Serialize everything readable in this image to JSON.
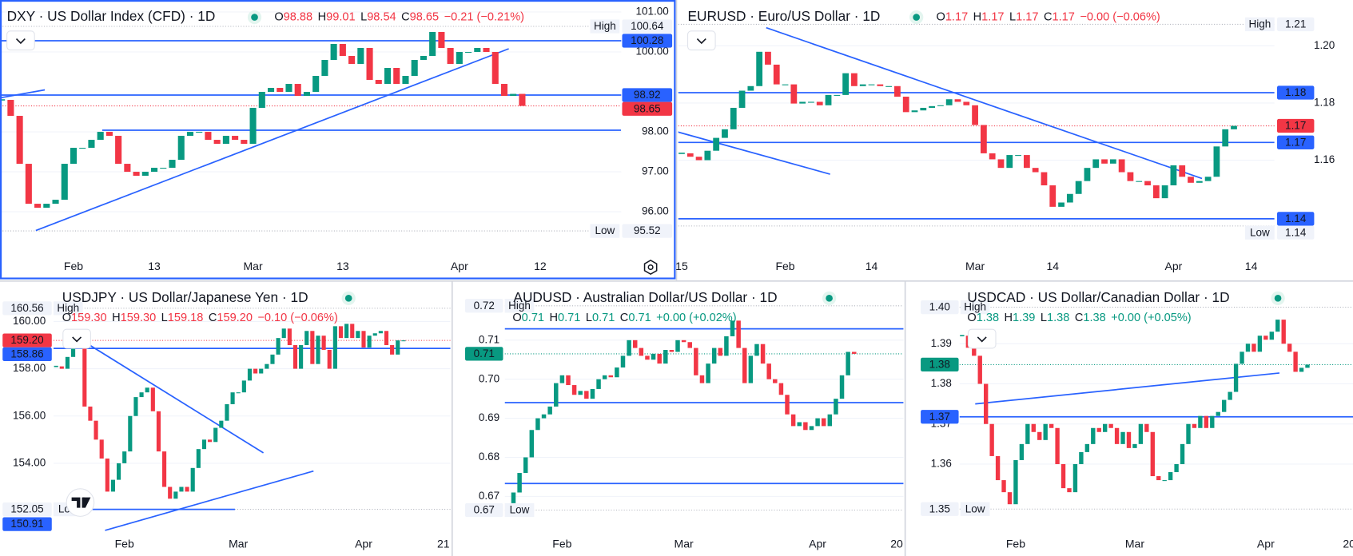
{
  "chart_data": [
    {
      "type": "candlestick",
      "title": "DXY · US Dollar Index (CFD) · 1D",
      "quote": [
        {
          "key": "O",
          "value": "98.88"
        },
        {
          "key": "H",
          "value": "99.01"
        },
        {
          "key": "L",
          "value": "98.54"
        },
        {
          "key": "C",
          "value": "98.65"
        }
      ],
      "change": "−0.21 (−0.21%)",
      "quote_color": "#f23645",
      "up_color": "#089981",
      "down_color": "#f23645",
      "categories": [
        null,
        null,
        null,
        null,
        null,
        null,
        null,
        null,
        "Feb",
        null,
        null,
        null,
        null,
        null,
        null,
        null,
        null,
        "13",
        null,
        null,
        null,
        null,
        null,
        null,
        null,
        null,
        null,
        null,
        "Mar",
        null,
        null,
        null,
        null,
        null,
        null,
        null,
        null,
        null,
        "13",
        null,
        null,
        null,
        null,
        null,
        null,
        null,
        null,
        null,
        null,
        null,
        null,
        "Apr",
        null,
        null,
        null,
        null,
        null,
        null,
        null,
        null,
        "12"
      ],
      "values": [
        98.8,
        98.4,
        97.2,
        96.2,
        96.1,
        96.2,
        96.3,
        97.2,
        97.6,
        97.6,
        97.8,
        98.0,
        97.9,
        97.2,
        97.0,
        96.9,
        97.0,
        97.1,
        97.1,
        97.3,
        97.9,
        98.0,
        98.0,
        97.8,
        97.7,
        97.9,
        97.8,
        97.7,
        98.6,
        99.0,
        99.1,
        99.0,
        99.2,
        98.9,
        99.0,
        99.4,
        99.8,
        100.2,
        99.9,
        99.7,
        100.1,
        99.3,
        99.2,
        99.6,
        99.2,
        99.4,
        99.8,
        99.9,
        100.5,
        100.1,
        99.7,
        100.0,
        100.0,
        100.1,
        100.0,
        99.2,
        98.9,
        98.95,
        98.65,
        null,
        null
      ],
      "ylim": [
        95.0,
        101.3
      ],
      "yticks": [
        {
          "value": 96,
          "label": "96.00"
        },
        {
          "value": 97,
          "label": "97.00"
        },
        {
          "value": 98,
          "label": "98.00"
        },
        {
          "value": 100,
          "label": "100.00"
        },
        {
          "value": 101,
          "label": "101.00"
        }
      ],
      "levels": [
        {
          "kind": "high",
          "value": 100.64,
          "label": "100.64",
          "tag": "High"
        },
        {
          "kind": "line",
          "value": 100.28,
          "label": "100.28"
        },
        {
          "kind": "line",
          "value": 98.92,
          "label": "98.92"
        },
        {
          "kind": "current",
          "value": 98.65,
          "label": "98.65",
          "color": "#f23645"
        },
        {
          "kind": "low",
          "value": 95.52,
          "label": "95.52",
          "tag": "Low"
        }
      ],
      "drawings": [
        [
          [
            3.8,
            95.53
          ],
          [
            56.5,
            100.08
          ]
        ],
        [
          [
            -0.2,
            98.85
          ],
          [
            4.8,
            99.05
          ]
        ],
        [
          [
            11.2,
            98.04
          ],
          [
            69,
            98.04
          ]
        ]
      ]
    },
    {
      "type": "candlestick",
      "title": "EURUSD · Euro/US Dollar · 1D",
      "quote": [
        {
          "key": "O",
          "value": "1.17"
        },
        {
          "key": "H",
          "value": "1.17"
        },
        {
          "key": "L",
          "value": "1.17"
        },
        {
          "key": "C",
          "value": "1.17"
        }
      ],
      "change": "−0.00 (−0.06%)",
      "quote_color": "#f23645",
      "up_color": "#089981",
      "down_color": "#f23645",
      "categories": [
        "15",
        null,
        null,
        null,
        null,
        null,
        null,
        null,
        null,
        null,
        null,
        null,
        "Feb",
        null,
        null,
        null,
        null,
        null,
        null,
        null,
        null,
        null,
        "14",
        null,
        null,
        null,
        null,
        null,
        null,
        null,
        null,
        null,
        null,
        null,
        "Mar",
        null,
        null,
        null,
        null,
        null,
        null,
        null,
        null,
        "14",
        null,
        null,
        null,
        null,
        null,
        null,
        null,
        null,
        null,
        null,
        null,
        null,
        null,
        "Apr",
        null,
        null,
        null,
        null,
        null,
        null,
        null,
        null,
        "14"
      ],
      "values": [
        1.1624,
        1.1612,
        1.16,
        1.1633,
        1.1678,
        1.1708,
        1.1783,
        1.1843,
        1.1859,
        1.1979,
        1.1934,
        1.1865,
        1.1865,
        1.1798,
        1.1804,
        1.1804,
        1.1792,
        1.1828,
        1.1828,
        1.1904,
        1.1859,
        1.1865,
        1.1865,
        1.1859,
        1.1859,
        1.1822,
        1.1768,
        1.1774,
        1.1783,
        1.1789,
        1.1792,
        1.1813,
        1.1804,
        1.1792,
        1.1723,
        1.1624,
        1.1603,
        1.1573,
        1.1618,
        1.1618,
        1.1573,
        1.1558,
        1.1512,
        1.1437,
        1.1452,
        1.1482,
        1.1527,
        1.1573,
        1.1603,
        1.1588,
        1.1603,
        1.1558,
        1.1527,
        1.1527,
        1.1512,
        1.1467,
        1.1512,
        1.1582,
        1.1542,
        1.1521,
        1.1527,
        1.1542,
        1.1648,
        1.1708,
        1.172,
        null,
        null
      ],
      "ylim": [
        1.128,
        1.216
      ],
      "yticks": [
        1.16,
        1.18,
        {
          "value": 1.2,
          "label": "1.20"
        }
      ],
      "levels": [
        {
          "kind": "high",
          "value": 1.2075,
          "label": "1.21",
          "tag": "High"
        },
        {
          "kind": "line",
          "value": 1.1836,
          "label": "1.18"
        },
        {
          "kind": "current",
          "value": 1.172,
          "label": "1.17",
          "color": "#f23645"
        },
        {
          "kind": "line",
          "value": 1.1662,
          "label": "1.17"
        },
        {
          "kind": "line",
          "value": 1.1395,
          "label": "1.14"
        },
        {
          "kind": "low",
          "value": 1.137,
          "label": "1.14",
          "tag": "Low"
        }
      ],
      "drawings": [
        [
          [
            9.8,
            1.2063
          ],
          [
            60.3,
            1.1536
          ]
        ],
        [
          [
            -0.5,
            1.1699
          ],
          [
            17.2,
            1.1551
          ]
        ]
      ]
    },
    {
      "type": "candlestick",
      "title": "USDJPY · US Dollar/Japanese Yen · 1D",
      "quote": [
        {
          "key": "O",
          "value": "159.30"
        },
        {
          "key": "H",
          "value": "159.30"
        },
        {
          "key": "L",
          "value": "159.18"
        },
        {
          "key": "C",
          "value": "159.20"
        }
      ],
      "change": "−0.10 (−0.06%)",
      "quote_color": "#f23645",
      "up_color": "#089981",
      "down_color": "#f23645",
      "categories": [
        null,
        null,
        null,
        null,
        null,
        null,
        null,
        null,
        null,
        null,
        null,
        null,
        "Feb",
        null,
        null,
        null,
        null,
        null,
        null,
        null,
        null,
        null,
        null,
        null,
        null,
        null,
        null,
        null,
        null,
        null,
        null,
        null,
        "Mar",
        null,
        null,
        null,
        null,
        null,
        null,
        null,
        null,
        null,
        null,
        null,
        null,
        null,
        null,
        null,
        null,
        null,
        null,
        null,
        null,
        null,
        "Apr",
        null,
        null,
        null,
        null,
        null,
        null,
        null,
        null,
        null,
        null,
        null,
        null,
        null,
        "21"
      ],
      "values": [
        158.1,
        158.0,
        158.5,
        158.9,
        159.0,
        156.4,
        155.8,
        155.0,
        154.2,
        152.8,
        153.3,
        154.0,
        154.5,
        156.0,
        156.8,
        157.0,
        157.2,
        156.2,
        154.5,
        153.0,
        152.5,
        152.8,
        153.0,
        152.8,
        153.8,
        154.6,
        155.0,
        154.9,
        155.5,
        155.8,
        156.5,
        157.0,
        157.0,
        157.5,
        158.0,
        157.8,
        158.0,
        158.2,
        158.6,
        159.3,
        159.7,
        159.0,
        158.0,
        159.0,
        159.6,
        158.2,
        159.4,
        158.8,
        158.0,
        159.8,
        159.3,
        159.9,
        159.3,
        159.6,
        158.9,
        159.4,
        159.5,
        159.6,
        159.0,
        158.6,
        159.2,
        159.2,
        null,
        null,
        null,
        null,
        null,
        null,
        null
      ],
      "ylim": [
        151.06,
        161.64
      ],
      "yticks": [
        {
          "value": 154,
          "label": "154.00"
        },
        {
          "value": 156,
          "label": "156.00"
        },
        {
          "value": 158,
          "label": "158.00"
        },
        {
          "value": 160,
          "label": "160.00"
        }
      ],
      "levels": [
        {
          "kind": "high",
          "value": 160.56,
          "label": "160.56",
          "tag": "High"
        },
        {
          "kind": "current",
          "value": 159.2,
          "label": "159.20",
          "color": "#f23645"
        },
        {
          "kind": "line",
          "value": 158.86,
          "label": "158.86"
        },
        {
          "kind": "low",
          "value": 152.05,
          "label": "152.05",
          "tag": "Low"
        },
        {
          "kind": "line",
          "value": 150.91,
          "label": "150.91"
        }
      ],
      "drawings": [
        [
          [
            5.3,
            159.09
          ],
          [
            36.4,
            154.44
          ]
        ],
        [
          [
            8.6,
            151.16
          ],
          [
            45.2,
            153.67
          ]
        ],
        [
          [
            4.5,
            152.05
          ],
          [
            31.4,
            152.05
          ]
        ]
      ]
    },
    {
      "type": "candlestick",
      "title": "AUDUSD · Australian Dollar/US Dollar · 1D",
      "quote": [
        {
          "key": "O",
          "value": "0.71"
        },
        {
          "key": "H",
          "value": "0.71"
        },
        {
          "key": "L",
          "value": "0.71"
        },
        {
          "key": "C",
          "value": "0.71"
        }
      ],
      "change": "+0.00 (+0.02%)",
      "quote_color": "#089981",
      "up_color": "#089981",
      "down_color": "#f23645",
      "categories": [
        null,
        null,
        null,
        null,
        null,
        null,
        null,
        null,
        null,
        "Feb",
        null,
        null,
        null,
        null,
        null,
        null,
        null,
        null,
        null,
        null,
        null,
        null,
        null,
        null,
        null,
        null,
        null,
        null,
        null,
        "Mar",
        null,
        null,
        null,
        null,
        null,
        null,
        null,
        null,
        null,
        null,
        null,
        null,
        null,
        null,
        null,
        null,
        null,
        null,
        null,
        null,
        null,
        "Apr",
        null,
        null,
        null,
        null,
        null,
        null,
        null,
        null,
        null,
        null,
        null,
        null,
        "20"
      ],
      "values": [
        0.668,
        0.671,
        0.676,
        0.68,
        0.687,
        0.69,
        0.691,
        0.693,
        0.699,
        0.701,
        0.6985,
        0.696,
        0.697,
        0.695,
        0.6975,
        0.7,
        0.701,
        0.7005,
        0.703,
        0.706,
        0.71,
        0.708,
        0.706,
        0.705,
        0.7065,
        0.704,
        0.7075,
        0.707,
        0.71,
        0.7095,
        0.708,
        0.701,
        0.699,
        0.704,
        0.708,
        0.706,
        0.711,
        0.715,
        0.708,
        0.699,
        0.706,
        0.709,
        0.704,
        0.7,
        0.699,
        0.696,
        0.691,
        0.688,
        0.689,
        0.687,
        0.688,
        0.69,
        0.688,
        0.691,
        0.695,
        0.701,
        0.707,
        0.7065,
        null,
        null,
        null,
        null,
        null,
        null,
        null
      ],
      "ylim": [
        0.6607,
        0.7247
      ],
      "yticks": [
        0.67,
        0.68,
        0.69,
        {
          "value": 0.7,
          "label": "0.70"
        },
        0.71
      ],
      "levels": [
        {
          "kind": "high",
          "value": 0.7188,
          "label": "0.72",
          "tag": "High"
        },
        {
          "kind": "line",
          "value": 0.7129
        },
        {
          "kind": "current",
          "value": 0.7065,
          "label": "0.71",
          "color": "#089981"
        },
        {
          "kind": "line",
          "value": 0.694
        },
        {
          "kind": "line",
          "value": 0.6733
        },
        {
          "kind": "low",
          "value": 0.6665,
          "label": "0.67",
          "tag": "Low"
        }
      ],
      "drawings": []
    },
    {
      "type": "candlestick",
      "title": "USDCAD · US Dollar/Canadian Dollar · 1D",
      "quote": [
        {
          "key": "O",
          "value": "1.38"
        },
        {
          "key": "H",
          "value": "1.39"
        },
        {
          "key": "L",
          "value": "1.38"
        },
        {
          "key": "C",
          "value": "1.38"
        }
      ],
      "change": "+0.00 (+0.05%)",
      "quote_color": "#089981",
      "up_color": "#089981",
      "down_color": "#f23645",
      "categories": [
        null,
        null,
        null,
        null,
        null,
        null,
        null,
        null,
        null,
        "Feb",
        null,
        null,
        null,
        null,
        null,
        null,
        null,
        null,
        null,
        null,
        null,
        null,
        null,
        null,
        null,
        null,
        null,
        null,
        null,
        "Mar",
        null,
        null,
        null,
        null,
        null,
        null,
        null,
        null,
        null,
        null,
        null,
        null,
        null,
        null,
        null,
        null,
        null,
        null,
        null,
        null,
        null,
        "Apr",
        null,
        null,
        null,
        null,
        null,
        null,
        null,
        null,
        null,
        null,
        null,
        null,
        null,
        "20"
      ],
      "values": [
        1.392,
        1.389,
        1.387,
        1.38,
        1.37,
        1.362,
        1.356,
        1.353,
        1.35,
        1.361,
        1.365,
        1.37,
        1.368,
        1.366,
        1.37,
        1.369,
        1.36,
        1.354,
        1.353,
        1.36,
        1.363,
        1.365,
        1.369,
        1.368,
        1.37,
        1.369,
        1.365,
        1.368,
        1.364,
        1.365,
        1.37,
        1.368,
        1.357,
        1.356,
        1.356,
        1.358,
        1.36,
        1.365,
        1.37,
        1.369,
        1.372,
        1.369,
        1.372,
        1.373,
        1.376,
        1.378,
        1.385,
        1.388,
        1.39,
        1.388,
        1.392,
        1.391,
        1.393,
        1.396,
        1.39,
        1.388,
        1.383,
        1.384,
        1.3848,
        null,
        null,
        null,
        null,
        null,
        null,
        null
      ],
      "ylim": [
        1.3429,
        1.4052
      ],
      "yticks": [
        1.36,
        1.37,
        1.38,
        1.39
      ],
      "levels": [
        {
          "kind": "high",
          "value": 1.3991,
          "label": "1.40",
          "tag": "High"
        },
        {
          "kind": "current",
          "value": 1.3848,
          "label": "1.38",
          "color": "#089981"
        },
        {
          "kind": "line",
          "value": 1.3718,
          "label": "1.37"
        },
        {
          "kind": "low",
          "value": 1.3488,
          "label": "1.35",
          "tag": "Low"
        }
      ],
      "drawings": [
        [
          [
            2.2,
            1.375
          ],
          [
            53.3,
            1.3827
          ]
        ]
      ]
    }
  ]
}
